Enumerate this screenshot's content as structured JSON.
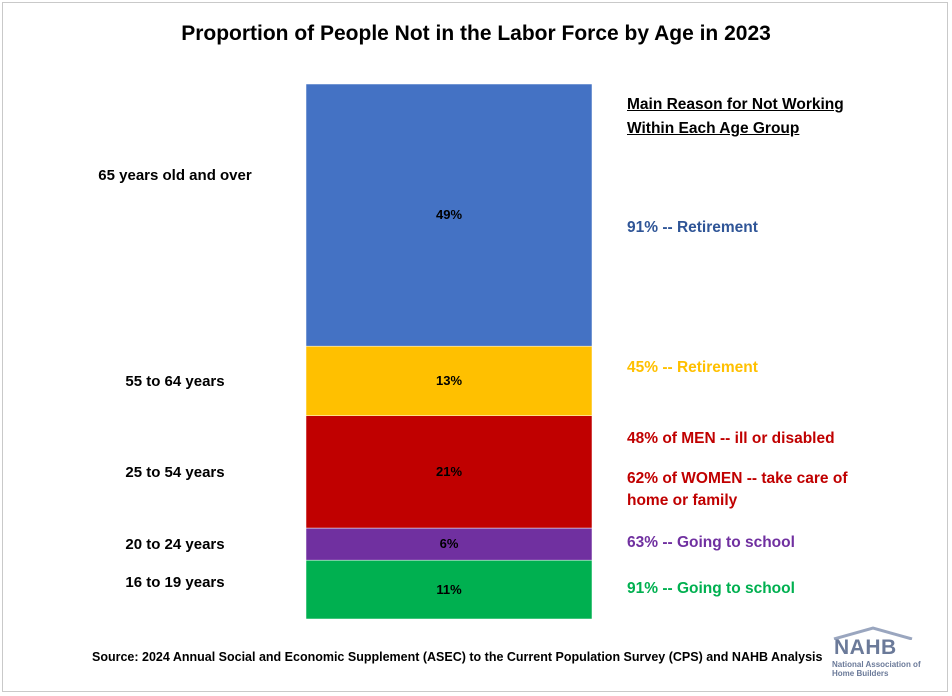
{
  "chart_data": {
    "type": "bar",
    "title": "Proportion of People Not in the Labor Force by Age in 2023",
    "categories": [
      "16 to 19 years",
      "20 to 24 years",
      "25 to 54 years",
      "55 to 64 years",
      "65 years old and over"
    ],
    "values": [
      11,
      6,
      21,
      13,
      49
    ],
    "value_labels": [
      "11%",
      "6%",
      "21%",
      "13%",
      "49%"
    ],
    "colors": [
      "#00b050",
      "#7030a0",
      "#c00000",
      "#ffc000",
      "#4472c4"
    ],
    "stacked": true,
    "legend": {
      "heading_line1": "Main Reason for Not Working",
      "heading_line2": "Within Each Age Group"
    },
    "annotations": [
      {
        "text": "91% -- Retirement",
        "color": "#2f5597"
      },
      {
        "text": "45% --  Retirement",
        "color": "#ffc000"
      },
      {
        "text": "48% of MEN -- ill or disabled",
        "color": "#c00000"
      },
      {
        "text": "62% of WOMEN -- take care of",
        "color": "#c00000"
      },
      {
        "text": "home or family",
        "color": "#c00000"
      },
      {
        "text": "63% -- Going to school",
        "color": "#7030a0"
      },
      {
        "text": "91% -- Going to school",
        "color": "#00b050"
      }
    ]
  },
  "source": "Source: 2024 Annual Social and Economic Supplement (ASEC) to the Current Population Survey (CPS) and NAHB Analysis",
  "logo": {
    "word": "NAHB",
    "sub": "National Association of Home Builders"
  }
}
